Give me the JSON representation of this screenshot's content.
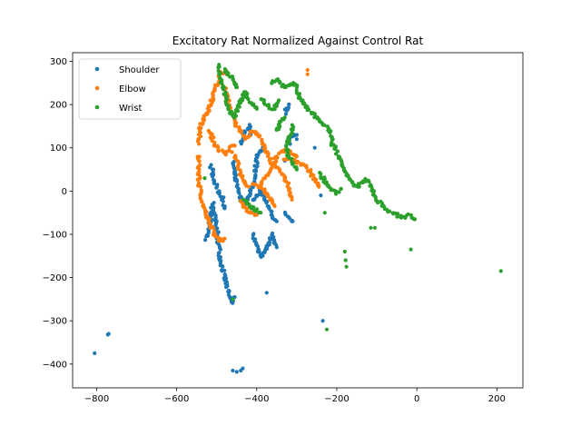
{
  "chart_data": {
    "type": "scatter",
    "title": "Excitatory Rat Normalized Against Control Rat",
    "xlabel": "",
    "ylabel": "",
    "xlim": [
      -860,
      265
    ],
    "ylim": [
      -455,
      320
    ],
    "xticks": [
      -800,
      -600,
      -400,
      -200,
      0,
      200
    ],
    "yticks": [
      -400,
      -300,
      -200,
      -100,
      0,
      100,
      200,
      300
    ],
    "grid": false,
    "legend_position": "top-left",
    "series": [
      {
        "name": "Shoulder",
        "color": "#1f77b4",
        "paths": [
          [
            [
              -525,
              -110
            ],
            [
              -515,
              -60
            ],
            [
              -510,
              -30
            ],
            [
              -500,
              -90
            ],
            [
              -490,
              -160
            ],
            [
              -480,
              -200
            ],
            [
              -470,
              -240
            ],
            [
              -462,
              -260
            ],
            [
              -455,
              -245
            ]
          ],
          [
            [
              -515,
              60
            ],
            [
              -510,
              40
            ],
            [
              -505,
              20
            ],
            [
              -495,
              0
            ],
            [
              -485,
              -20
            ],
            [
              -480,
              -40
            ]
          ],
          [
            [
              -460,
              70
            ],
            [
              -455,
              40
            ],
            [
              -450,
              10
            ],
            [
              -440,
              -20
            ],
            [
              -430,
              -30
            ],
            [
              -420,
              -10
            ],
            [
              -410,
              10
            ],
            [
              -405,
              40
            ],
            [
              -400,
              70
            ],
            [
              -395,
              90
            ],
            [
              -385,
              100
            ]
          ],
          [
            [
              -440,
              110
            ],
            [
              -430,
              130
            ],
            [
              -420,
              150
            ],
            [
              -415,
              130
            ]
          ],
          [
            [
              -410,
              -100
            ],
            [
              -400,
              -130
            ],
            [
              -390,
              -150
            ],
            [
              -380,
              -140
            ],
            [
              -370,
              -120
            ],
            [
              -360,
              -100
            ],
            [
              -350,
              -130
            ]
          ],
          [
            [
              -410,
              -20
            ],
            [
              -400,
              -10
            ],
            [
              -390,
              0
            ],
            [
              -380,
              -20
            ],
            [
              -370,
              -40
            ],
            [
              -360,
              -60
            ],
            [
              -350,
              -70
            ]
          ],
          [
            [
              -330,
              -50
            ],
            [
              -320,
              -60
            ],
            [
              -310,
              -70
            ]
          ],
          [
            [
              -320,
              110
            ],
            [
              -310,
              130
            ],
            [
              -300,
              130
            ]
          ],
          [
            [
              -330,
              180
            ],
            [
              -320,
              200
            ]
          ]
        ],
        "points": [
          [
            -805,
            -375
          ],
          [
            -772,
            -332
          ],
          [
            -770,
            -330
          ],
          [
            -460,
            -415
          ],
          [
            -450,
            -418
          ],
          [
            -440,
            -415
          ],
          [
            -435,
            -410
          ],
          [
            -375,
            -235
          ],
          [
            -235,
            -300
          ],
          [
            -300,
            120
          ],
          [
            -255,
            100
          ],
          [
            -240,
            -10
          ],
          [
            -330,
            70
          ]
        ]
      },
      {
        "name": "Elbow",
        "color": "#ff7f0e",
        "paths": [
          [
            [
              -545,
              80
            ],
            [
              -545,
              20
            ],
            [
              -535,
              -30
            ],
            [
              -520,
              -70
            ],
            [
              -505,
              -100
            ],
            [
              -490,
              -115
            ],
            [
              -480,
              -110
            ]
          ],
          [
            [
              -545,
              110
            ],
            [
              -540,
              150
            ],
            [
              -530,
              170
            ],
            [
              -520,
              190
            ],
            [
              -510,
              215
            ],
            [
              -500,
              245
            ],
            [
              -490,
              270
            ],
            [
              -480,
              280
            ],
            [
              -475,
              270
            ]
          ],
          [
            [
              -520,
              140
            ],
            [
              -505,
              110
            ],
            [
              -495,
              95
            ],
            [
              -480,
              85
            ],
            [
              -470,
              100
            ],
            [
              -455,
              105
            ]
          ],
          [
            [
              -480,
              240
            ],
            [
              -470,
              200
            ],
            [
              -460,
              175
            ],
            [
              -450,
              150
            ],
            [
              -440,
              140
            ],
            [
              -425,
              120
            ],
            [
              -410,
              140
            ],
            [
              -395,
              130
            ],
            [
              -385,
              110
            ],
            [
              -375,
              90
            ],
            [
              -365,
              70
            ],
            [
              -355,
              55
            ],
            [
              -340,
              45
            ],
            [
              -330,
              30
            ],
            [
              -320,
              10
            ],
            [
              -315,
              -5
            ],
            [
              -312,
              -20
            ]
          ],
          [
            [
              -440,
              -20
            ],
            [
              -430,
              -40
            ],
            [
              -415,
              -50
            ],
            [
              -400,
              -55
            ]
          ],
          [
            [
              -410,
              20
            ],
            [
              -395,
              10
            ],
            [
              -380,
              0
            ],
            [
              -365,
              -20
            ],
            [
              -355,
              -35
            ]
          ],
          [
            [
              -395,
              10
            ],
            [
              -380,
              30
            ],
            [
              -365,
              50
            ],
            [
              -350,
              80
            ],
            [
              -330,
              95
            ],
            [
              -315,
              90
            ],
            [
              -300,
              80
            ]
          ],
          [
            [
              -330,
              75
            ],
            [
              -310,
              70
            ],
            [
              -290,
              65
            ],
            [
              -275,
              55
            ],
            [
              -260,
              35
            ],
            [
              -250,
              20
            ],
            [
              -245,
              10
            ]
          ],
          [
            [
              -460,
              90
            ],
            [
              -450,
              70
            ],
            [
              -440,
              40
            ],
            [
              -430,
              20
            ],
            [
              -420,
              10
            ]
          ]
        ],
        "points": [
          [
            -273,
            280
          ],
          [
            -273,
            270
          ],
          [
            -495,
            -115
          ]
        ]
      },
      {
        "name": "Wrist",
        "color": "#2ca02c",
        "paths": [
          [
            [
              -495,
              290
            ],
            [
              -490,
              260
            ],
            [
              -480,
              230
            ],
            [
              -475,
              200
            ],
            [
              -465,
              180
            ],
            [
              -455,
              170
            ],
            [
              -445,
              200
            ],
            [
              -430,
              230
            ],
            [
              -420,
              210
            ],
            [
              -410,
              200
            ],
            [
              -400,
              190
            ]
          ],
          [
            [
              -480,
              280
            ],
            [
              -470,
              270
            ],
            [
              -460,
              260
            ],
            [
              -450,
              240
            ]
          ],
          [
            [
              -390,
              215
            ],
            [
              -380,
              205
            ],
            [
              -370,
              195
            ],
            [
              -360,
              190
            ],
            [
              -350,
              200
            ],
            [
              -345,
              210
            ]
          ],
          [
            [
              -360,
              250
            ],
            [
              -350,
              260
            ],
            [
              -340,
              250
            ],
            [
              -330,
              240
            ],
            [
              -320,
              245
            ],
            [
              -310,
              250
            ],
            [
              -300,
              240
            ]
          ],
          [
            [
              -300,
              230
            ],
            [
              -290,
              210
            ],
            [
              -280,
              200
            ],
            [
              -270,
              190
            ],
            [
              -260,
              180
            ],
            [
              -250,
              170
            ],
            [
              -240,
              160
            ],
            [
              -230,
              150
            ],
            [
              -220,
              145
            ],
            [
              -215,
              130
            ],
            [
              -210,
              120
            ]
          ],
          [
            [
              -215,
              115
            ],
            [
              -205,
              100
            ],
            [
              -200,
              90
            ],
            [
              -195,
              80
            ],
            [
              -190,
              70
            ],
            [
              -180,
              50
            ],
            [
              -170,
              30
            ],
            [
              -160,
              15
            ],
            [
              -150,
              10
            ],
            [
              -140,
              20
            ],
            [
              -130,
              25
            ],
            [
              -120,
              20
            ],
            [
              -110,
              0
            ],
            [
              -100,
              -20
            ],
            [
              -90,
              -30
            ],
            [
              -80,
              -40
            ],
            [
              -70,
              -45
            ],
            [
              -60,
              -50
            ],
            [
              -50,
              -55
            ],
            [
              -40,
              -60
            ],
            [
              -30,
              -60
            ],
            [
              -20,
              -55
            ],
            [
              -10,
              -60
            ],
            [
              -5,
              -65
            ]
          ],
          [
            [
              -310,
              150
            ],
            [
              -320,
              120
            ],
            [
              -325,
              95
            ],
            [
              -320,
              80
            ],
            [
              -310,
              65
            ],
            [
              -300,
              50
            ]
          ],
          [
            [
              -240,
              40
            ],
            [
              -230,
              20
            ],
            [
              -220,
              10
            ],
            [
              -210,
              0
            ],
            [
              -200,
              -5
            ],
            [
              -190,
              5
            ]
          ],
          [
            [
              -430,
              -20
            ],
            [
              -420,
              -30
            ],
            [
              -410,
              -40
            ],
            [
              -400,
              -45
            ],
            [
              -390,
              -50
            ]
          ],
          [
            [
              -350,
              140
            ],
            [
              -340,
              160
            ],
            [
              -330,
              170
            ]
          ]
        ],
        "points": [
          [
            -240,
            30
          ],
          [
            -180,
            -140
          ],
          [
            -178,
            -160
          ],
          [
            -176,
            -175
          ],
          [
            -115,
            -85
          ],
          [
            -105,
            -85
          ],
          [
            -15,
            -135
          ],
          [
            210,
            -185
          ],
          [
            -225,
            -320
          ],
          [
            -230,
            -50
          ],
          [
            -530,
            30
          ],
          [
            -460,
            -250
          ],
          [
            -450,
            240
          ]
        ]
      }
    ]
  }
}
